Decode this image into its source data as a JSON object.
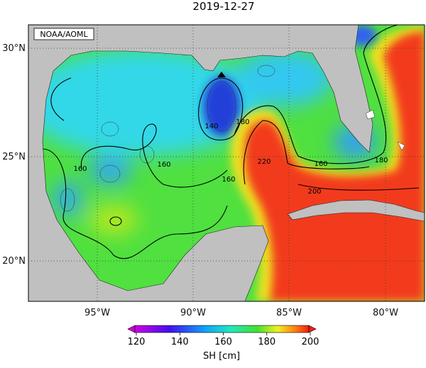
{
  "title": "2019-12-27",
  "credit": "NOAA/AOML",
  "lat_labels": [
    "30°N",
    "25°N",
    "20°N"
  ],
  "lon_labels": [
    "95°W",
    "90°W",
    "85°W",
    "80°W"
  ],
  "contour_labels": [
    "140",
    "180",
    "160",
    "160",
    "160",
    "220",
    "160",
    "200",
    "180"
  ],
  "colorbar": {
    "ticks": [
      120,
      140,
      160,
      180,
      200
    ],
    "label": "SH [cm]"
  }
}
